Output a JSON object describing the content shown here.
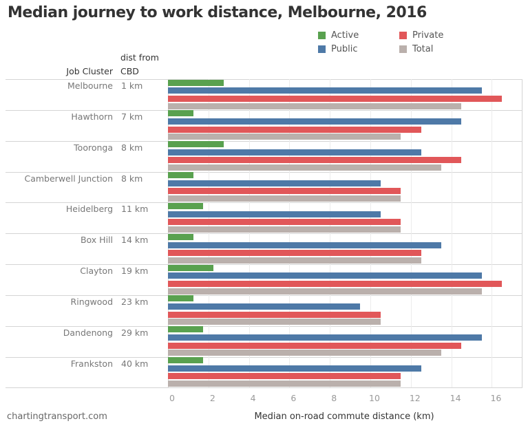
{
  "title": "Median journey to work distance, Melbourne, 2016",
  "legend": [
    {
      "label": "Active",
      "color": "#59a14f"
    },
    {
      "label": "Private",
      "color": "#e15759"
    },
    {
      "label": "Public",
      "color": "#4e79a7"
    },
    {
      "label": "Total",
      "color": "#bab0ac"
    }
  ],
  "headers": {
    "job_cluster": "Job Cluster",
    "dist_line1": "dist from",
    "dist_line2": "CBD"
  },
  "footer": {
    "source": "chartingtransport.com"
  },
  "chart_data": {
    "type": "bar",
    "orientation": "horizontal",
    "title": "Median journey to work distance, Melbourne, 2016",
    "xlabel": "Median on-road commute distance (km)",
    "ylabel": "Job Cluster",
    "xlim": [
      0,
      17.5
    ],
    "xticks": [
      "0",
      "2",
      "4",
      "6",
      "8",
      "10",
      "12",
      "14",
      "16"
    ],
    "grid": true,
    "legend_position": "top-right",
    "categories": [
      "Melbourne",
      "Hawthorn",
      "Tooronga",
      "Camberwell Junction",
      "Heidelberg",
      "Box Hill",
      "Clayton",
      "Ringwood",
      "Dandenong",
      "Frankston"
    ],
    "dist_from_cbd": [
      "1 km",
      "7 km",
      "8 km",
      "8 km",
      "11 km",
      "14 km",
      "19 km",
      "23 km",
      "29 km",
      "40 km"
    ],
    "series": [
      {
        "name": "Active",
        "color": "#59a14f",
        "values": [
          2.75,
          1.25,
          2.75,
          1.25,
          1.75,
          1.25,
          2.25,
          1.25,
          1.75,
          1.75
        ]
      },
      {
        "name": "Public",
        "color": "#4e79a7",
        "values": [
          15.5,
          14.5,
          12.5,
          10.5,
          10.5,
          13.5,
          15.5,
          9.5,
          15.5,
          12.5
        ]
      },
      {
        "name": "Private",
        "color": "#e15759",
        "values": [
          16.5,
          12.5,
          14.5,
          11.5,
          11.5,
          12.5,
          16.5,
          10.5,
          14.5,
          11.5
        ]
      },
      {
        "name": "Total",
        "color": "#bab0ac",
        "values": [
          14.5,
          11.5,
          13.5,
          11.5,
          11.5,
          12.5,
          15.5,
          10.5,
          13.5,
          11.5
        ]
      }
    ]
  }
}
